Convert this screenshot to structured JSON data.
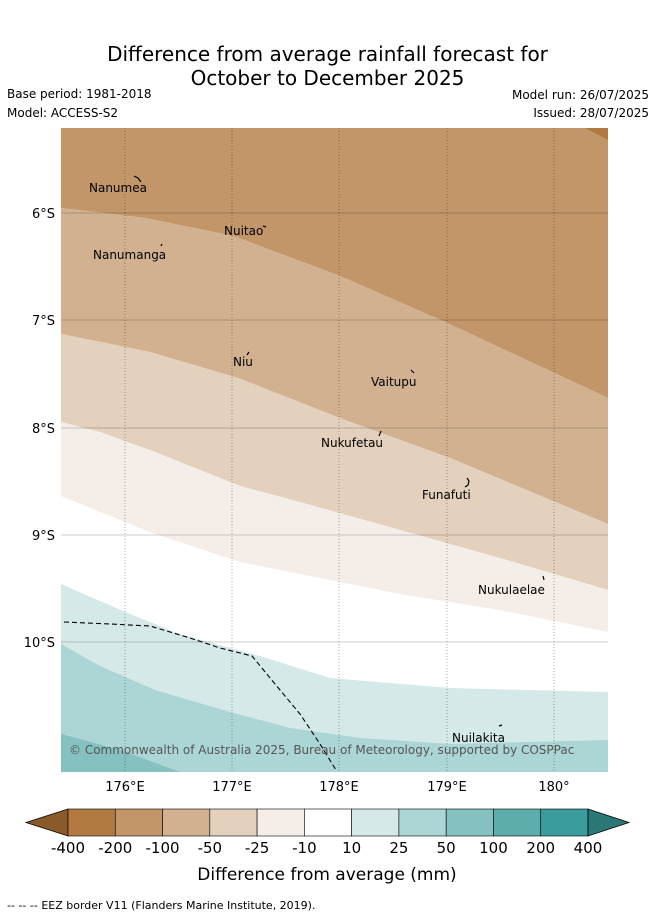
{
  "header": {
    "title_line1": "Difference from average rainfall forecast for",
    "title_line2": "October to December 2025",
    "base_period": "Base period: 1981-2018",
    "model": "Model: ACCESS-S2",
    "model_run": "Model run: 26/07/2025",
    "issued": "Issued: 28/07/2025"
  },
  "map": {
    "lon_ticks": [
      "176°E",
      "177°E",
      "178°E",
      "179°E",
      "180°"
    ],
    "lat_ticks": [
      "6°S",
      "7°S",
      "8°S",
      "9°S",
      "10°S"
    ],
    "places": [
      "Nanumea",
      "Nuitao",
      "Nanumanga",
      "Niu",
      "Vaitupu",
      "Nukufetau",
      "Funafuti",
      "Nukulaelae",
      "Nuilakita"
    ],
    "copyright": "© Commonwealth of Australia 2025, Bureau of Meteorology, supported by COSPPac"
  },
  "legend": {
    "ticks": [
      "-400",
      "-200",
      "-100",
      "-50",
      "-25",
      "-10",
      "10",
      "25",
      "50",
      "100",
      "200",
      "400"
    ],
    "colors": [
      "#8a5a2b",
      "#b07a40",
      "#c29668",
      "#d2b190",
      "#e3d0bd",
      "#f4ede8",
      "#ffffff",
      "#d5e9e8",
      "#acd5d5",
      "#86c1c1",
      "#5eadad",
      "#3a9c9c",
      "#2a7878"
    ],
    "label": "Difference from average (mm)"
  },
  "footer": {
    "eez_symbol": "-- -- --",
    "eez_text": "EEZ border V11 (Flanders Marine Institute, 2019)."
  }
}
